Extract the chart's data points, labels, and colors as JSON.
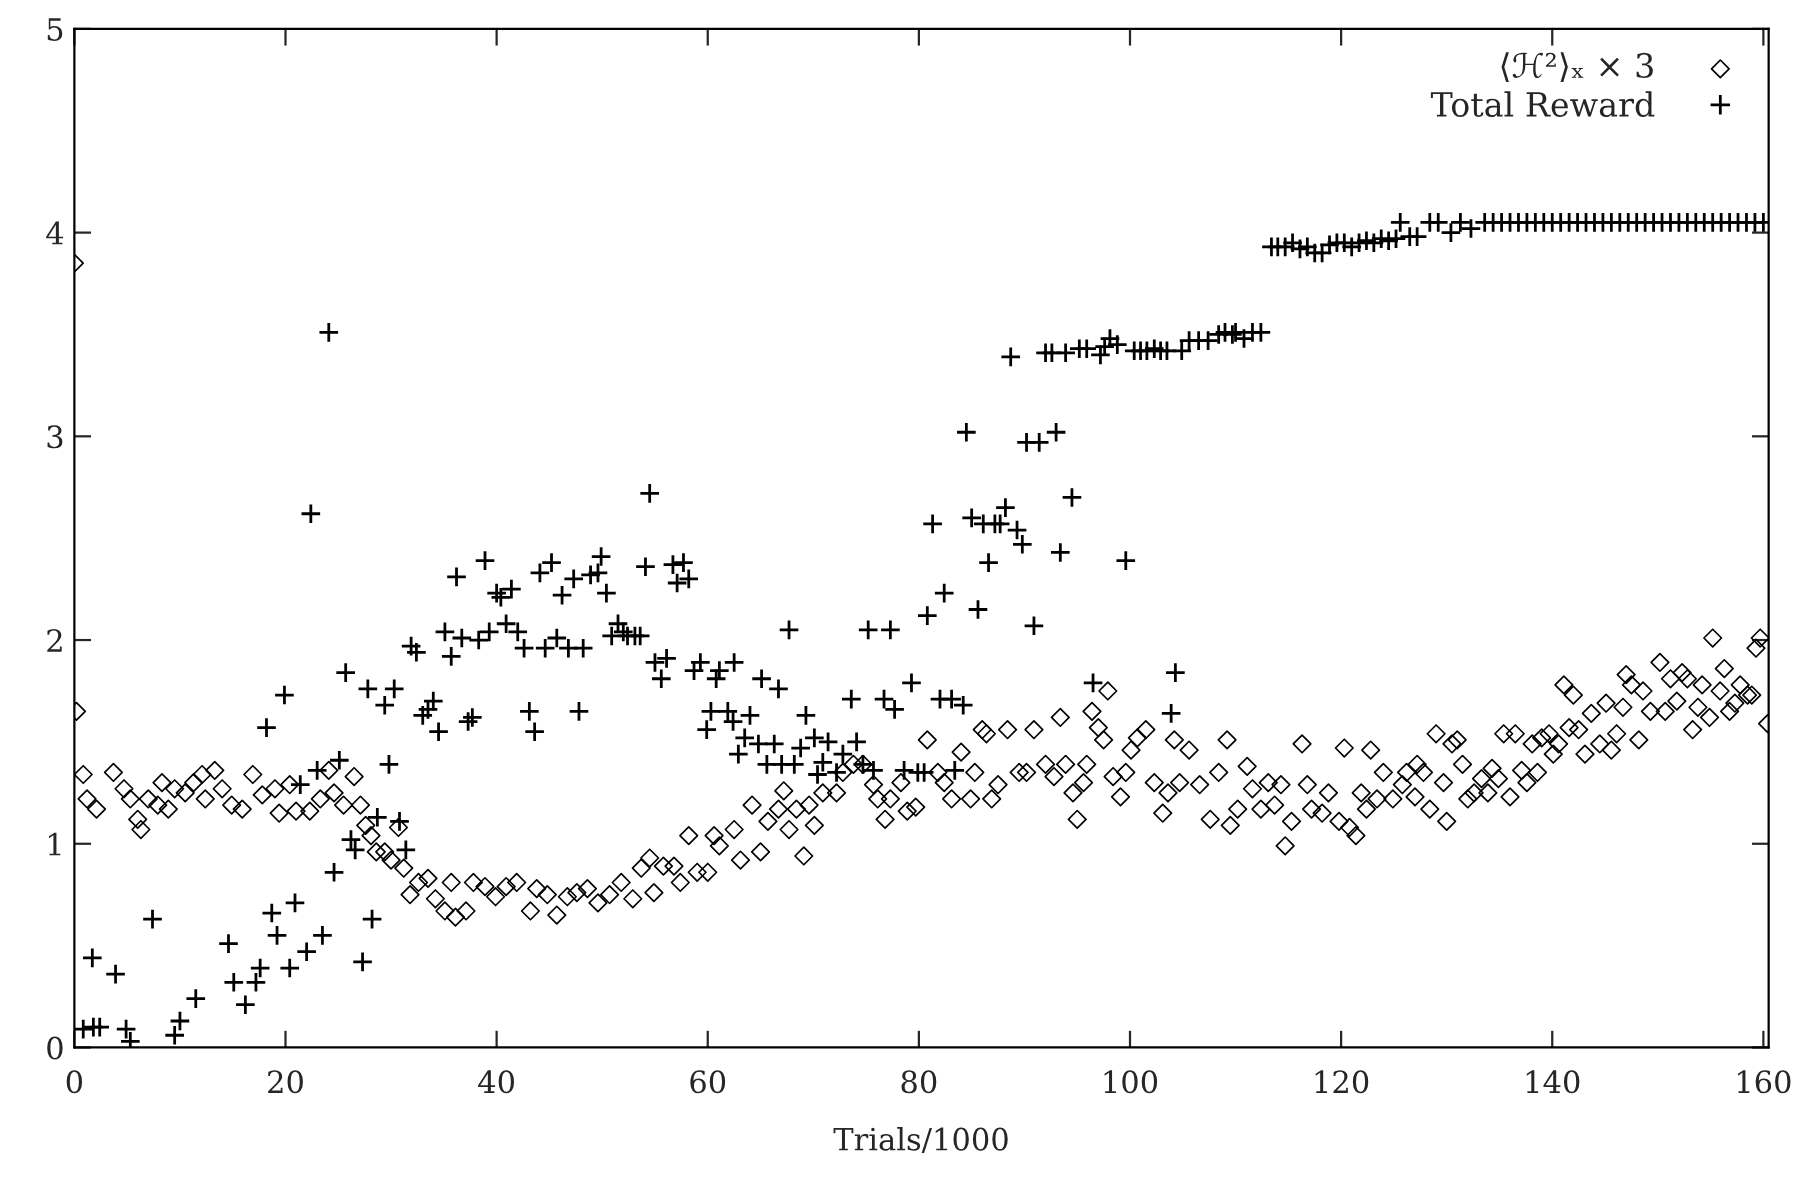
{
  "chart_data": {
    "type": "scatter",
    "xlabel": "Trials/1000",
    "xlim": [
      0,
      160.5
    ],
    "ylim": [
      0,
      5
    ],
    "xticks": [
      0,
      20,
      40,
      60,
      80,
      100,
      120,
      140,
      160
    ],
    "yticks": [
      0,
      1,
      2,
      3,
      4,
      5
    ],
    "grid": false,
    "legend": "top right",
    "series": [
      {
        "name": "⟨ℋ²⟩ₓ × 3",
        "color": "#000000",
        "marker": "diamond",
        "x": [
          0,
          0.2,
          0.84,
          1.2,
          2.1,
          3.7,
          4.7,
          5.3,
          6.0,
          6.3,
          7.0,
          7.9,
          8.3,
          8.9,
          9.5,
          10.5,
          11.3,
          12.1,
          12.4,
          13.3,
          14.0,
          14.9,
          15.9,
          16.9,
          17.8,
          19.0,
          19.4,
          20.4,
          21.0,
          22.3,
          23.3,
          24.1,
          24.6,
          25.5,
          26.5,
          27.1,
          27.6,
          28.1,
          28.6,
          29.4,
          30.0,
          30.7,
          31.2,
          31.8,
          32.6,
          33.5,
          34.2,
          35.1,
          35.7,
          36.1,
          37.1,
          37.8,
          38.9,
          39.9,
          40.9,
          41.9,
          43.2,
          43.8,
          44.8,
          45.7,
          46.7,
          47.6,
          48.6,
          49.6,
          50.7,
          51.8,
          52.9,
          53.7,
          54.5,
          54.9,
          55.8,
          56.8,
          57.4,
          58.2,
          59.0,
          60.0,
          60.6,
          61.1,
          62.5,
          63.1,
          64.2,
          65.0,
          65.7,
          66.7,
          67.2,
          67.7,
          68.4,
          69.1,
          69.6,
          70.1,
          70.9,
          72.2,
          72.8,
          73.8,
          74.7,
          75.7,
          76.1,
          76.8,
          77.3,
          78.3,
          78.9,
          79.7,
          80.8,
          81.8,
          82.4,
          83.1,
          84.0,
          84.9,
          85.3,
          86.0,
          86.4,
          86.9,
          87.5,
          88.4,
          89.5,
          90.2,
          90.9,
          92.0,
          92.8,
          93.4,
          93.9,
          94.6,
          95.0,
          95.6,
          95.9,
          96.4,
          97.0,
          97.5,
          97.9,
          98.4,
          99.1,
          99.6,
          100.1,
          100.7,
          101.5,
          102.3,
          103.1,
          103.6,
          104.2,
          104.7,
          105.6,
          106.6,
          107.6,
          108.4,
          109.2,
          109.5,
          110.2,
          111.1,
          111.6,
          112.4,
          113.1,
          113.7,
          114.3,
          114.7,
          115.3,
          116.3,
          116.8,
          117.2,
          118.2,
          118.8,
          119.8,
          120.3,
          120.8,
          121.4,
          121.9,
          122.4,
          122.8,
          123.4,
          124.0,
          124.9,
          125.8,
          126.2,
          127.0,
          127.2,
          127.8,
          128.4,
          129.0,
          129.7,
          130.0,
          130.5,
          131.0,
          131.5,
          132.0,
          132.6,
          133.3,
          133.9,
          134.3,
          134.9,
          135.4,
          136.0,
          136.5,
          137.1,
          137.6,
          138.1,
          138.6,
          139.0,
          139.7,
          140.1,
          140.6,
          141.1,
          141.6,
          142.0,
          142.5,
          143.1,
          143.7,
          144.5,
          145.1,
          145.6,
          146.1,
          146.7,
          147.0,
          147.5,
          148.2,
          148.6,
          149.3,
          150.2,
          150.7,
          151.2,
          151.8,
          152.3,
          152.8,
          153.3,
          153.8,
          154.2,
          154.9,
          155.2,
          155.9,
          156.3,
          156.8,
          157.3,
          157.8,
          158.5,
          158.9,
          159.3,
          159.7,
          160.4
        ],
        "values": [
          3.85,
          1.65,
          1.34,
          1.22,
          1.17,
          1.35,
          1.27,
          1.22,
          1.12,
          1.07,
          1.22,
          1.19,
          1.3,
          1.17,
          1.27,
          1.25,
          1.3,
          1.34,
          1.22,
          1.36,
          1.27,
          1.19,
          1.17,
          1.34,
          1.24,
          1.27,
          1.15,
          1.29,
          1.16,
          1.16,
          1.22,
          1.36,
          1.25,
          1.19,
          1.33,
          1.19,
          1.09,
          1.04,
          0.96,
          0.96,
          0.92,
          1.08,
          0.88,
          0.75,
          0.81,
          0.83,
          0.73,
          0.67,
          0.81,
          0.64,
          0.67,
          0.81,
          0.79,
          0.74,
          0.79,
          0.81,
          0.67,
          0.78,
          0.75,
          0.65,
          0.74,
          0.76,
          0.78,
          0.71,
          0.75,
          0.81,
          0.73,
          0.88,
          0.93,
          0.76,
          0.89,
          0.89,
          0.81,
          1.04,
          0.86,
          0.86,
          1.04,
          0.99,
          1.07,
          0.92,
          1.19,
          0.96,
          1.11,
          1.17,
          1.26,
          1.07,
          1.17,
          0.94,
          1.19,
          1.09,
          1.25,
          1.25,
          1.35,
          1.39,
          1.39,
          1.29,
          1.22,
          1.12,
          1.22,
          1.3,
          1.16,
          1.18,
          1.51,
          1.35,
          1.3,
          1.22,
          1.45,
          1.22,
          1.35,
          1.56,
          1.54,
          1.22,
          1.29,
          1.56,
          1.35,
          1.35,
          1.56,
          1.39,
          1.33,
          1.62,
          1.39,
          1.25,
          1.12,
          1.3,
          1.39,
          1.65,
          1.57,
          1.51,
          1.75,
          1.33,
          1.23,
          1.35,
          1.46,
          1.52,
          1.56,
          1.3,
          1.15,
          1.25,
          1.51,
          1.3,
          1.46,
          1.29,
          1.12,
          1.35,
          1.51,
          1.09,
          1.17,
          1.38,
          1.27,
          1.17,
          1.3,
          1.19,
          1.29,
          0.99,
          1.11,
          1.49,
          1.29,
          1.17,
          1.15,
          1.25,
          1.11,
          1.47,
          1.08,
          1.04,
          1.25,
          1.17,
          1.46,
          1.22,
          1.35,
          1.22,
          1.29,
          1.35,
          1.23,
          1.39,
          1.35,
          1.17,
          1.54,
          1.3,
          1.11,
          1.49,
          1.51,
          1.39,
          1.22,
          1.25,
          1.32,
          1.25,
          1.37,
          1.32,
          1.54,
          1.23,
          1.54,
          1.36,
          1.3,
          1.49,
          1.35,
          1.52,
          1.54,
          1.44,
          1.49,
          1.78,
          1.57,
          1.73,
          1.56,
          1.44,
          1.64,
          1.49,
          1.69,
          1.46,
          1.54,
          1.67,
          1.83,
          1.78,
          1.51,
          1.75,
          1.65,
          1.89,
          1.65,
          1.81,
          1.7,
          1.84,
          1.81,
          1.56,
          1.67,
          1.78,
          1.62,
          2.01,
          1.75,
          1.86,
          1.65,
          1.69,
          1.78,
          1.73,
          1.73,
          1.96,
          2.01,
          1.59
        ]
      },
      {
        "name": "Total Reward",
        "color": "#000000",
        "marker": "cross",
        "x": [
          0.84,
          1.8,
          2.4,
          1.7,
          3.9,
          4.9,
          5.3,
          7.4,
          9.5,
          10.0,
          11.5,
          14.6,
          15.1,
          16.2,
          17.2,
          17.6,
          18.7,
          19.2,
          20.4,
          20.9,
          22.0,
          23.5,
          21.4,
          22.4,
          24.1,
          23.0,
          18.2,
          19.9,
          25.1,
          24.6,
          25.7,
          26.2,
          26.6,
          27.3,
          27.8,
          28.2,
          28.7,
          29.4,
          29.8,
          30.3,
          30.8,
          31.4,
          31.9,
          32.4,
          33.0,
          33.5,
          34.0,
          34.5,
          35.1,
          35.7,
          36.2,
          36.7,
          37.3,
          37.7,
          38.3,
          38.9,
          39.3,
          40.0,
          40.4,
          40.9,
          41.4,
          42.0,
          42.6,
          43.1,
          43.6,
          44.1,
          44.6,
          45.2,
          45.7,
          46.2,
          46.8,
          47.3,
          47.8,
          48.2,
          48.9,
          49.6,
          49.9,
          50.4,
          50.9,
          51.5,
          52.0,
          52.4,
          53.1,
          53.6,
          54.1,
          54.5,
          55.0,
          56.7,
          57.7,
          57.1,
          58.2,
          56.1,
          55.6,
          58.7,
          59.3,
          61.1,
          62.5,
          60.8,
          65.1,
          66.7,
          67.7,
          59.9,
          60.3,
          61.9,
          62.4,
          64.0,
          62.9,
          63.5,
          64.8,
          66.3,
          65.6,
          67.0,
          68.2,
          68.8,
          69.3,
          70.1,
          70.9,
          71.4,
          70.4,
          72.2,
          72.8,
          73.6,
          74.1,
          74.7,
          75.2,
          75.7,
          76.7,
          77.3,
          77.7,
          78.6,
          79.3,
          79.9,
          80.5,
          80.8,
          81.3,
          82.0,
          82.4,
          83.1,
          83.4,
          84.2,
          84.5,
          85.0,
          85.6,
          86.1,
          86.6,
          87.2,
          87.7,
          88.2,
          88.7,
          89.3,
          89.8,
          90.2,
          90.9,
          91.4,
          92.0,
          92.6,
          93.0,
          93.4,
          93.9,
          94.5,
          95.2,
          95.9,
          96.5,
          97.2,
          97.6,
          98.1,
          98.8,
          99.6,
          100.4,
          101.0,
          101.6,
          102.3,
          102.9,
          103.5,
          103.9,
          104.3,
          104.9,
          105.6,
          106.5,
          107.4,
          108.4,
          109.0,
          109.7,
          110.0,
          110.8,
          111.6,
          112.4,
          113.4,
          114.0,
          114.7,
          115.4,
          116.1,
          116.8,
          117.5,
          118.2,
          118.9,
          119.6,
          120.3,
          121.0,
          121.7,
          122.4,
          123.1,
          123.8,
          124.5,
          125.2,
          125.6,
          126.5,
          127.2,
          128.4,
          129.2,
          130.4,
          131.3,
          132.3,
          133.6,
          134.4,
          135.2,
          136.0,
          136.8,
          137.6,
          138.4,
          139.2,
          140.0,
          140.8,
          141.6,
          142.4,
          143.2,
          144.0,
          144.8,
          145.6,
          146.4,
          147.2,
          148.0,
          148.8,
          149.6,
          150.4,
          151.2,
          152.0,
          152.8,
          153.6,
          154.4,
          155.2,
          156.0,
          156.8,
          157.6,
          158.4,
          159.2,
          160.0
        ],
        "values": [
          0.09,
          0.1,
          0.1,
          0.44,
          0.36,
          0.09,
          0.03,
          0.63,
          0.06,
          0.13,
          0.24,
          0.51,
          0.32,
          0.21,
          0.32,
          0.39,
          0.66,
          0.55,
          0.39,
          0.71,
          0.47,
          0.55,
          1.29,
          2.62,
          3.51,
          1.36,
          1.57,
          1.73,
          1.41,
          0.86,
          1.84,
          1.02,
          0.97,
          0.42,
          1.76,
          0.63,
          1.13,
          1.68,
          1.39,
          1.76,
          1.11,
          0.97,
          1.97,
          1.94,
          1.63,
          1.66,
          1.7,
          1.55,
          2.04,
          1.92,
          2.31,
          2.01,
          1.6,
          1.62,
          2.0,
          2.39,
          2.04,
          2.23,
          2.21,
          2.08,
          2.25,
          2.04,
          1.96,
          1.65,
          1.55,
          2.33,
          1.96,
          2.38,
          2.01,
          2.22,
          1.96,
          2.3,
          1.65,
          1.96,
          2.32,
          2.33,
          2.41,
          2.23,
          2.02,
          2.08,
          2.04,
          2.02,
          2.02,
          2.02,
          2.36,
          2.72,
          1.89,
          2.37,
          2.38,
          2.28,
          2.3,
          1.91,
          1.81,
          1.85,
          1.89,
          1.85,
          1.89,
          1.81,
          1.81,
          1.76,
          2.05,
          1.56,
          1.65,
          1.65,
          1.6,
          1.63,
          1.44,
          1.52,
          1.49,
          1.49,
          1.39,
          1.39,
          1.39,
          1.47,
          1.63,
          1.52,
          1.4,
          1.5,
          1.34,
          1.35,
          1.44,
          1.71,
          1.5,
          1.39,
          2.05,
          1.36,
          1.71,
          2.05,
          1.66,
          1.36,
          1.79,
          1.35,
          1.35,
          2.12,
          2.57,
          1.71,
          2.23,
          1.71,
          1.36,
          1.68,
          3.02,
          2.6,
          2.15,
          2.57,
          2.38,
          2.57,
          2.57,
          2.65,
          3.39,
          2.54,
          2.47,
          2.97,
          2.07,
          2.97,
          3.41,
          3.41,
          3.02,
          2.43,
          3.41,
          2.7,
          3.43,
          3.43,
          1.79,
          3.4,
          3.44,
          3.48,
          3.45,
          2.39,
          3.42,
          3.42,
          3.42,
          3.43,
          3.42,
          3.42,
          1.64,
          1.84,
          3.42,
          3.47,
          3.47,
          3.47,
          3.5,
          3.51,
          3.5,
          3.51,
          3.48,
          3.51,
          3.51,
          3.93,
          3.93,
          3.93,
          3.95,
          3.92,
          3.93,
          3.9,
          3.9,
          3.94,
          3.95,
          3.95,
          3.93,
          3.95,
          3.96,
          3.95,
          3.97,
          3.96,
          3.97,
          4.05,
          3.98,
          3.98,
          4.05,
          4.05,
          4.0,
          4.05,
          4.02,
          4.05,
          4.05,
          4.05,
          4.05,
          4.05,
          4.05,
          4.05,
          4.05,
          4.05,
          4.05,
          4.05,
          4.05,
          4.05,
          4.05,
          4.05,
          4.05,
          4.05,
          4.05,
          4.05,
          4.05,
          4.05,
          4.05,
          4.05,
          4.05,
          4.05,
          4.05,
          4.05,
          4.05,
          4.05,
          4.05,
          4.05,
          4.05,
          4.05,
          4.05
        ]
      }
    ]
  }
}
